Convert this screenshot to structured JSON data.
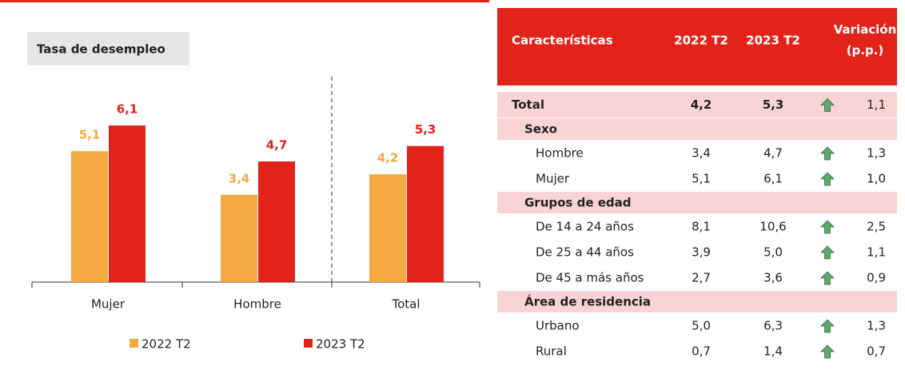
{
  "chart_data": {
    "type": "bar",
    "title": "Tasa de desempleo",
    "categories": [
      "Mujer",
      "Hombre",
      "Total"
    ],
    "series": [
      {
        "name": "2022 T2",
        "color": "#f4a942",
        "values": [
          5.1,
          3.4,
          4.2
        ],
        "value_labels": [
          "5,1",
          "3,4",
          "4,2"
        ]
      },
      {
        "name": "2023 T2",
        "color": "#e2231a",
        "values": [
          6.1,
          4.7,
          5.3
        ],
        "value_labels": [
          "6,1",
          "4,7",
          "5,3"
        ]
      }
    ],
    "ylim": [
      0,
      8
    ],
    "legend": "bottom"
  },
  "table": {
    "header": [
      "Características",
      "2022 T2",
      "2023 T2",
      "Variación (p.p.)"
    ],
    "rows": [
      {
        "kind": "total",
        "cells": [
          "Total",
          "4,2",
          "5,3",
          "1,1"
        ]
      },
      {
        "kind": "section",
        "cells": [
          "Sexo"
        ]
      },
      {
        "kind": "item",
        "cells": [
          "Hombre",
          "3,4",
          "4,7",
          "1,3"
        ]
      },
      {
        "kind": "item",
        "cells": [
          "Mujer",
          "5,1",
          "6,1",
          "1,0"
        ]
      },
      {
        "kind": "section",
        "cells": [
          "Grupos de edad"
        ]
      },
      {
        "kind": "item",
        "cells": [
          "De 14 a 24 años",
          "8,1",
          "10,6",
          "2,5"
        ]
      },
      {
        "kind": "item",
        "cells": [
          "De 25 a 44 años",
          "3,9",
          "5,0",
          "1,1"
        ]
      },
      {
        "kind": "item",
        "cells": [
          "De 45 a más años",
          "2,7",
          "3,6",
          "0,9"
        ]
      },
      {
        "kind": "section",
        "cells": [
          "Área de residencia"
        ]
      },
      {
        "kind": "item",
        "cells": [
          "Urbano",
          "5,0",
          "6,3",
          "1,3"
        ]
      },
      {
        "kind": "item",
        "cells": [
          "Rural",
          "0,7",
          "1,4",
          "0,7"
        ]
      }
    ]
  }
}
